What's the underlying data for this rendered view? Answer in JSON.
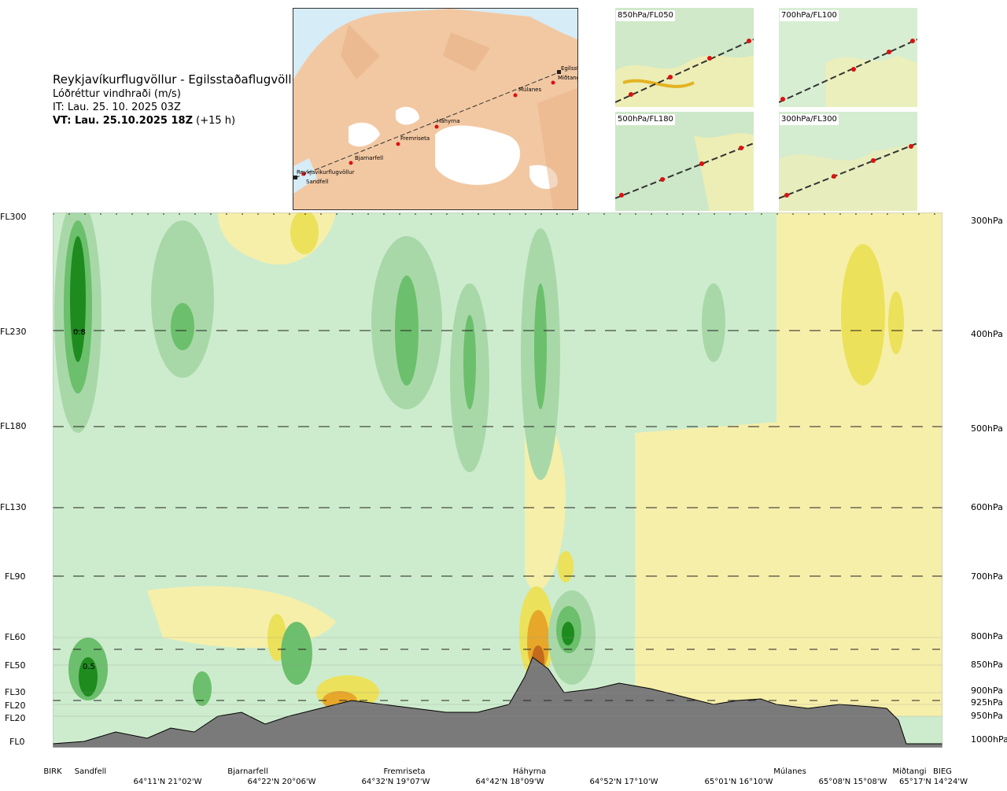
{
  "header": {
    "route": "Reykjavíkurflugvöllur - Egilsstaðaflugvöllur",
    "variable": "Lóðréttur vindhraði (m/s)",
    "issue_time": "IT: Lau. 25. 10. 2025 03Z",
    "valid_time": "VT: Lau. 25.10.2025 18Z",
    "lead": "(+15 h)"
  },
  "map": {
    "places": [
      "Reykjavíkurflugvöllur",
      "Sandfell",
      "Bjarnarfell",
      "Fremriseta",
      "Háhyrna",
      "Múlanes",
      "Egilsst",
      "Miðtangi"
    ]
  },
  "thumbnails": [
    {
      "label": "850hPa/FL050"
    },
    {
      "label": "700hPa/FL100"
    },
    {
      "label": "500hPa/FL180"
    },
    {
      "label": "300hPa/FL300"
    }
  ],
  "levels_left": [
    "FL300",
    "FL230",
    "FL180",
    "FL130",
    "FL90",
    "FL60",
    "FL50",
    "FL30",
    "FL20",
    "FL20",
    "FL0"
  ],
  "levels_right": [
    "300hPa",
    "400hPa",
    "500hPa",
    "600hPa",
    "700hPa",
    "800hPa",
    "850hPa",
    "900hPa",
    "925hPa",
    "950hPa",
    "1000hPa"
  ],
  "x_axis": {
    "places": [
      "BIRK",
      "Sandfell",
      "Bjarnarfell",
      "Fremriseta",
      "Háhyrna",
      "Múlanes",
      "Miðtangi",
      "BIEG"
    ],
    "coords": [
      "64°11'N 21°02'W",
      "64°22'N 20°06'W",
      "64°32'N 19°07'W",
      "64°42'N 18°09'W",
      "64°52'N 17°10'W",
      "65°01'N 16°10'W",
      "65°08'N 15°08'W",
      "65°17'N 14°24'W"
    ]
  },
  "contour_labels": [
    "0.8",
    "0.5"
  ],
  "colors": {
    "strong_up": "#1e8b1e",
    "mid_up": "#6cbf6c",
    "weak_up": "#a8d8a8",
    "light_up": "#cdeccd",
    "neutral": "#f0f8e8",
    "weak_down": "#f6efaa",
    "mid_down": "#ece15a",
    "strong_down": "#e7a72a",
    "terrain": "#7a7a7a",
    "route_point": "#dd1111"
  }
}
